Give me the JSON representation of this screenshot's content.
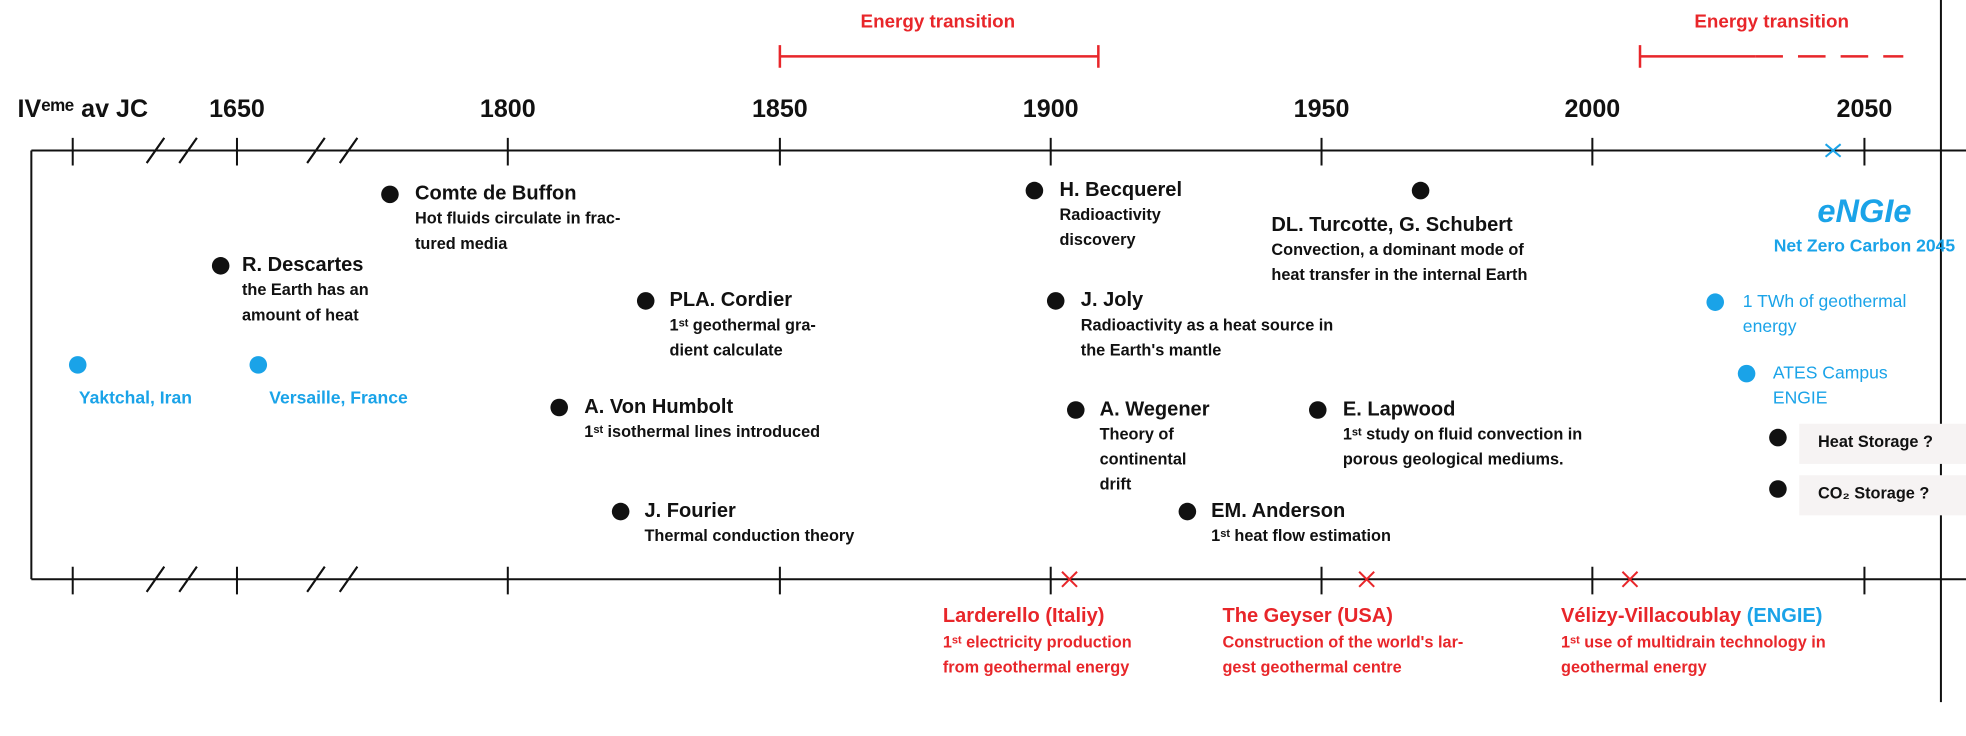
{
  "axis": {
    "labels": [
      "IVᵉᵐᵉ av JC",
      "1650",
      "1800",
      "1850",
      "1900",
      "1950",
      "2000",
      "2050"
    ]
  },
  "transitions": [
    "Energy transition",
    "Energy transition"
  ],
  "events": [
    {
      "name": "Comte de Buffon",
      "lines": [
        "Hot fluids circulate in frac-",
        "tured media"
      ]
    },
    {
      "name": "R. Descartes",
      "lines": [
        "the Earth has an",
        "amount of heat"
      ]
    },
    {
      "name": "PLA. Cordier",
      "lines": [
        "1ˢᵗ geothermal gra-",
        "dient calculate"
      ]
    },
    {
      "name": "A. Von Humbolt",
      "lines": [
        "1ˢᵗ isothermal lines introduced"
      ]
    },
    {
      "name": "J. Fourier",
      "lines": [
        "Thermal conduction theory"
      ]
    },
    {
      "name": "H. Becquerel",
      "lines": [
        "Radioactivity",
        "discovery"
      ]
    },
    {
      "name": "J. Joly",
      "lines": [
        "Radioactivity as a heat source in",
        "the Earth's mantle"
      ]
    },
    {
      "name": "A. Wegener",
      "lines": [
        "Theory of",
        "continental",
        "drift"
      ]
    },
    {
      "name": "EM. Anderson",
      "lines": [
        "1ˢᵗ heat flow estimation"
      ]
    },
    {
      "name": "E. Lapwood",
      "lines": [
        "1ˢᵗ study on fluid convection in",
        "porous geological mediums."
      ]
    },
    {
      "name": "DL. Turcotte, G. Schubert",
      "lines": [
        "Convection, a dominant mode of",
        "heat transfer in the internal Earth"
      ]
    }
  ],
  "places": [
    "Yaktchal, Iran",
    "Versaille, France"
  ],
  "engie": {
    "logo": "eNGIe",
    "goal": "Net Zero Carbon 2045",
    "items": [
      [
        "1 TWh of geothermal",
        "energy"
      ],
      [
        "ATES Campus",
        "ENGIE"
      ]
    ]
  },
  "storage": [
    "Heat Storage ?",
    "CO₂ Storage ?"
  ],
  "sites": [
    {
      "name": [
        "Larderello (Italiy)"
      ],
      "lines": [
        "1ˢᵗ electricity production",
        "from geothermal energy"
      ]
    },
    {
      "name": [
        "The Geyser (USA)"
      ],
      "lines": [
        "Construction of the world's lar-",
        "gest geothermal centre"
      ]
    },
    {
      "name": [
        "Vélizy-Villacoublay",
        " (ENGIE)"
      ],
      "lines": [
        "1ˢᵗ use of multidrain technology in",
        "geothermal energy"
      ]
    }
  ]
}
